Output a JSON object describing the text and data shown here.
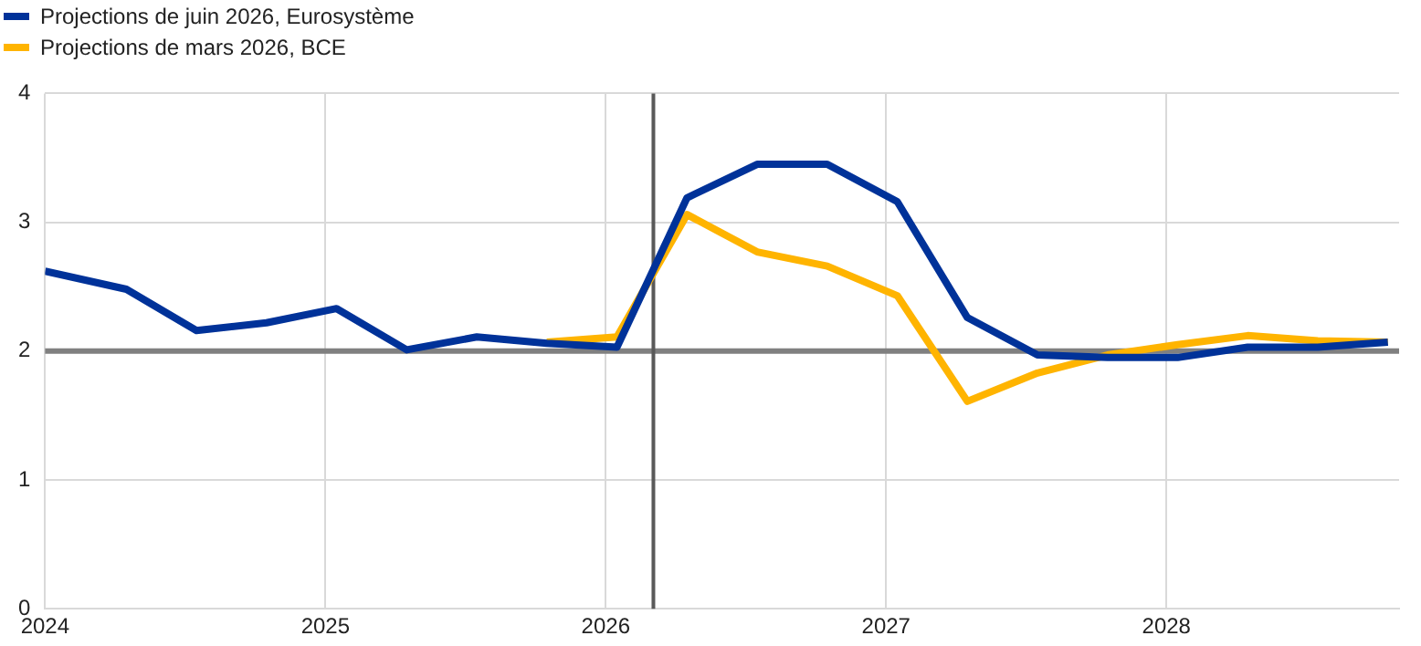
{
  "chart_data": {
    "type": "line",
    "series": [
      {
        "name": "Projections de juin 2026, Eurosystème",
        "color": "#003299",
        "x": [
          2024,
          2024.29,
          2024.54,
          2024.79,
          2025.04,
          2025.29,
          2025.54,
          2025.79,
          2026.04,
          2026.29,
          2026.54,
          2026.79,
          2027.04,
          2027.29,
          2027.54,
          2027.79,
          2028.04,
          2028.29,
          2028.54,
          2028.79
        ],
        "values": [
          2.62,
          2.48,
          2.16,
          2.22,
          2.33,
          2.01,
          2.11,
          2.06,
          2.03,
          3.19,
          3.45,
          3.45,
          3.16,
          2.26,
          1.97,
          1.95,
          1.95,
          2.03,
          2.03,
          2.07
        ]
      },
      {
        "name": "Projections de mars 2026, BCE",
        "color": "#ffb400",
        "x": [
          2025.79,
          2026.04,
          2026.29,
          2026.54,
          2026.79,
          2027.04,
          2027.29,
          2027.54,
          2027.79,
          2028.04,
          2028.29,
          2028.54,
          2028.79
        ],
        "values": [
          2.07,
          2.11,
          3.06,
          2.77,
          2.66,
          2.43,
          1.61,
          1.83,
          1.97,
          2.05,
          2.12,
          2.08,
          2.07
        ]
      }
    ],
    "xlim": [
      2024,
      2028.83
    ],
    "xticks": [
      2024,
      2025,
      2026,
      2027,
      2028
    ],
    "ylim": [
      0,
      4
    ],
    "yticks": [
      0,
      1,
      2,
      3,
      4
    ],
    "ref_lines": [
      {
        "axis": "y",
        "value": 2,
        "color": "#808080"
      },
      {
        "axis": "x",
        "value": 2026.17,
        "color": "#595959"
      }
    ],
    "grid": true,
    "legend": "top left",
    "marker": "none",
    "line_style": "solid"
  }
}
